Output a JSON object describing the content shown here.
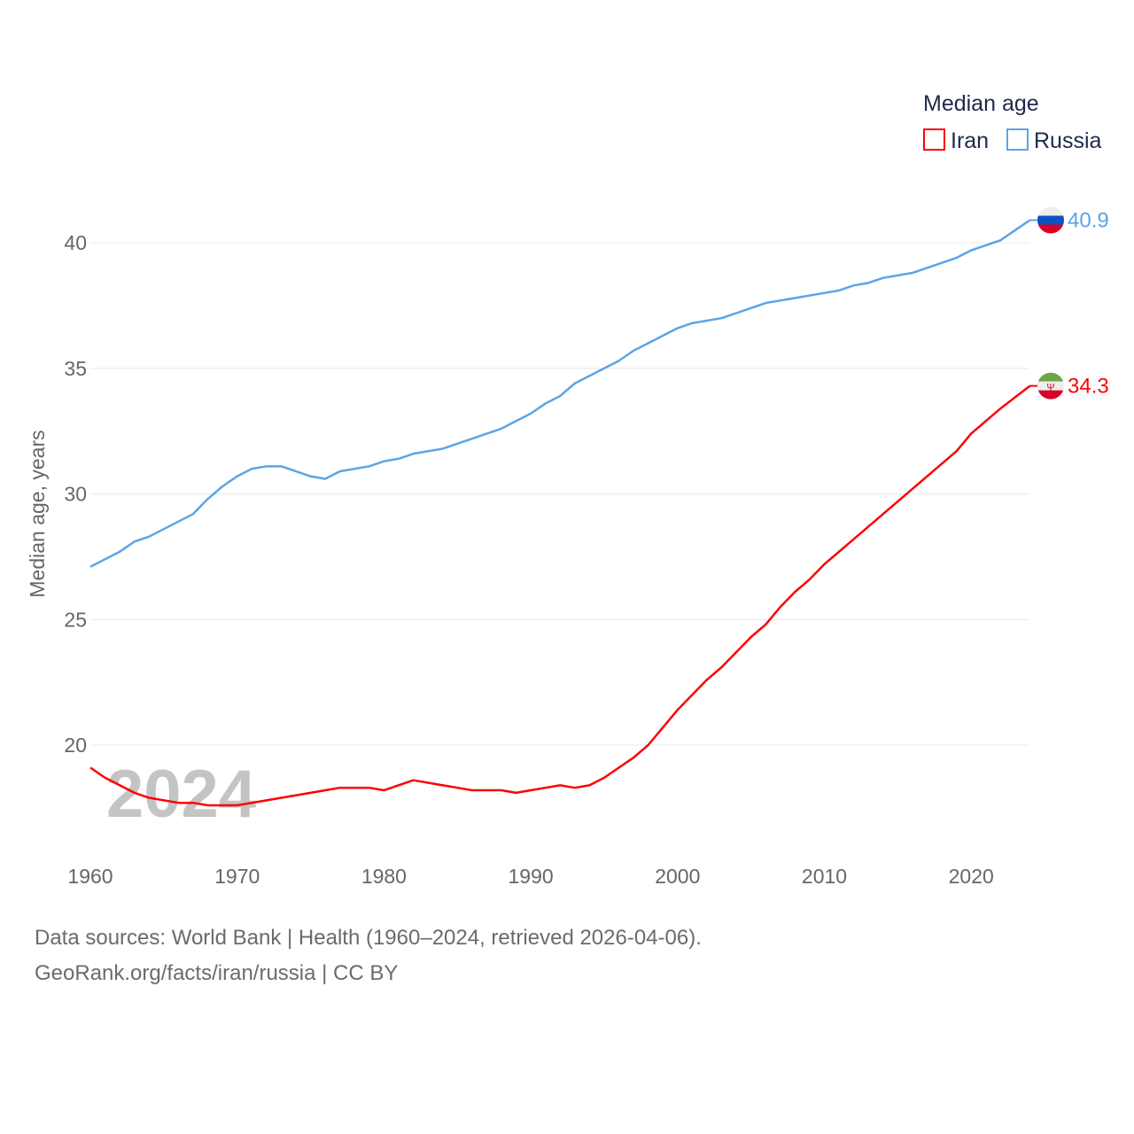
{
  "chart_data": {
    "type": "line",
    "title": "Median age",
    "xlabel": "",
    "ylabel": "Median age, years",
    "xlim": [
      1960,
      2024
    ],
    "ylim": [
      16.5,
      42
    ],
    "x_ticks": [
      1960,
      1970,
      1980,
      1990,
      2000,
      2010,
      2020
    ],
    "y_ticks": [
      20,
      25,
      30,
      35,
      40
    ],
    "grid": true,
    "legend_position": "top-right",
    "watermark_year": "2024",
    "series": [
      {
        "name": "Iran",
        "color": "#ff0000",
        "end_label": "34.3",
        "flag": "iran-flag",
        "x": [
          1960,
          1961,
          1963,
          1964,
          1966,
          1967,
          1968,
          1970,
          1972,
          1975,
          1977,
          1979,
          1980,
          1982,
          1984,
          1986,
          1988,
          1989,
          1990,
          1992,
          1993,
          1994,
          1995,
          1996,
          1997,
          1998,
          1999,
          2000,
          2001,
          2002,
          2003,
          2004,
          2005,
          2006,
          2007,
          2008,
          2009,
          2010,
          2012,
          2014,
          2016,
          2018,
          2019,
          2020,
          2022,
          2024
        ],
        "values": [
          19.1,
          18.7,
          18.1,
          17.9,
          17.7,
          17.7,
          17.6,
          17.6,
          17.8,
          18.1,
          18.3,
          18.3,
          18.2,
          18.6,
          18.4,
          18.2,
          18.2,
          18.1,
          18.2,
          18.4,
          18.3,
          18.4,
          18.7,
          19.1,
          19.5,
          20.0,
          20.7,
          21.4,
          22.0,
          22.6,
          23.1,
          23.7,
          24.3,
          24.8,
          25.5,
          26.1,
          26.6,
          27.2,
          28.2,
          29.2,
          30.2,
          31.2,
          31.7,
          32.4,
          33.4,
          34.3
        ]
      },
      {
        "name": "Russia",
        "color": "#5ba4e8",
        "end_label": "40.9",
        "flag": "russia-flag",
        "x": [
          1960,
          1962,
          1963,
          1964,
          1967,
          1968,
          1969,
          1970,
          1971,
          1972,
          1973,
          1974,
          1975,
          1976,
          1977,
          1979,
          1980,
          1981,
          1982,
          1984,
          1986,
          1988,
          1990,
          1991,
          1992,
          1993,
          1994,
          1996,
          1997,
          1998,
          2000,
          2001,
          2003,
          2004,
          2006,
          2008,
          2010,
          2011,
          2012,
          2013,
          2014,
          2016,
          2017,
          2019,
          2020,
          2022,
          2023,
          2024
        ],
        "values": [
          27.1,
          27.7,
          28.1,
          28.3,
          29.2,
          29.8,
          30.3,
          30.7,
          31.0,
          31.1,
          31.1,
          30.9,
          30.7,
          30.6,
          30.9,
          31.1,
          31.3,
          31.4,
          31.6,
          31.8,
          32.2,
          32.6,
          33.2,
          33.6,
          33.9,
          34.4,
          34.7,
          35.3,
          35.7,
          36.0,
          36.6,
          36.8,
          37.0,
          37.2,
          37.6,
          37.8,
          38.0,
          38.1,
          38.3,
          38.4,
          38.6,
          38.8,
          39.0,
          39.4,
          39.7,
          40.1,
          40.5,
          40.9
        ]
      }
    ]
  },
  "footer": {
    "line1": "Data sources: World Bank | Health (1960–2024, retrieved 2026-04-06).",
    "line2": "GeoRank.org/facts/iran/russia | CC BY"
  }
}
